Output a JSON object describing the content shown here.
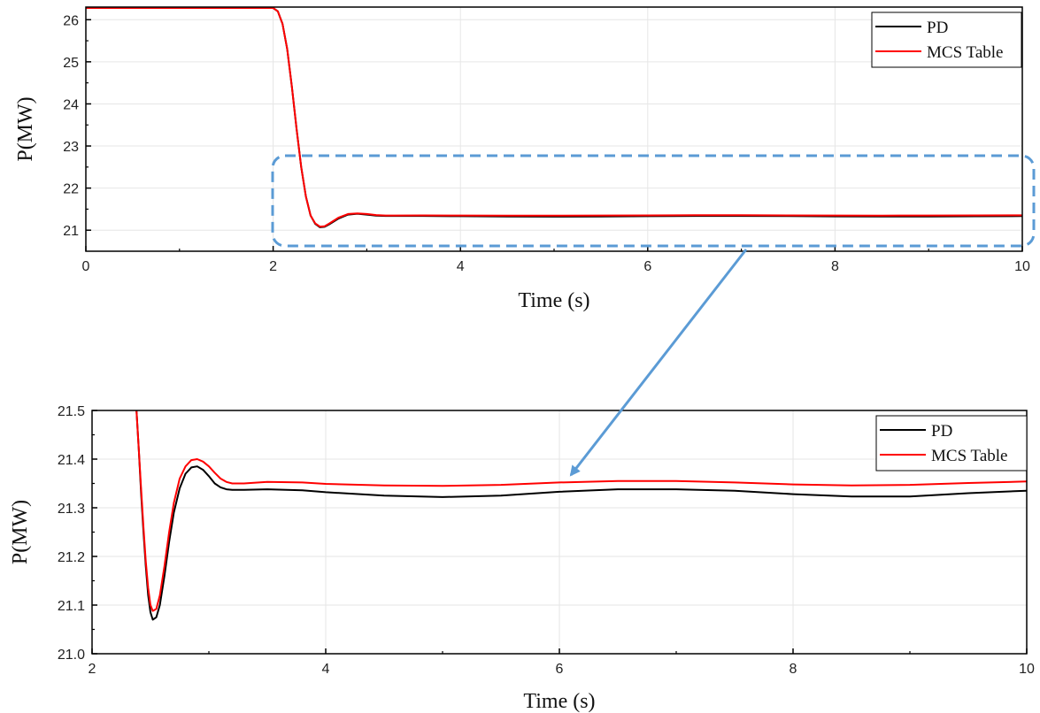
{
  "chart_data": [
    {
      "type": "line",
      "xlabel": "Time (s)",
      "ylabel": "P(MW)",
      "xlim": [
        0,
        10
      ],
      "ylim": [
        20.5,
        26.3
      ],
      "xticks": [
        0,
        2,
        4,
        6,
        8,
        10
      ],
      "yticks": [
        21,
        22,
        23,
        24,
        25,
        26
      ],
      "grid": true,
      "legend": "top-right",
      "series": [
        {
          "name": "PD",
          "color": "#000000",
          "x": [
            0,
            2.0,
            2.05,
            2.1,
            2.15,
            2.2,
            2.25,
            2.3,
            2.35,
            2.4,
            2.45,
            2.5,
            2.55,
            2.6,
            2.7,
            2.8,
            2.9,
            3.0,
            3.1,
            3.2,
            3.3,
            3.6,
            4.0,
            4.5,
            5.0,
            5.5,
            6.0,
            6.5,
            7.0,
            7.5,
            8.0,
            8.5,
            9.0,
            9.5,
            10.0
          ],
          "y": [
            26.28,
            26.28,
            26.2,
            25.9,
            25.3,
            24.4,
            23.4,
            22.5,
            21.8,
            21.35,
            21.15,
            21.07,
            21.08,
            21.14,
            21.28,
            21.37,
            21.39,
            21.37,
            21.345,
            21.338,
            21.338,
            21.338,
            21.332,
            21.325,
            21.322,
            21.325,
            21.333,
            21.338,
            21.338,
            21.335,
            21.328,
            21.323,
            21.323,
            21.33,
            21.335
          ]
        },
        {
          "name": "MCS Table",
          "color": "#ff0000",
          "x": [
            0,
            2.0,
            2.05,
            2.1,
            2.15,
            2.2,
            2.25,
            2.3,
            2.35,
            2.4,
            2.45,
            2.5,
            2.55,
            2.6,
            2.7,
            2.8,
            2.9,
            3.0,
            3.1,
            3.2,
            3.3,
            3.6,
            4.0,
            4.5,
            5.0,
            5.5,
            6.0,
            6.5,
            7.0,
            7.5,
            8.0,
            8.5,
            9.0,
            9.5,
            10.0
          ],
          "y": [
            26.28,
            26.28,
            26.2,
            25.9,
            25.3,
            24.4,
            23.4,
            22.5,
            21.8,
            21.35,
            21.16,
            21.085,
            21.095,
            21.16,
            21.3,
            21.385,
            21.4,
            21.385,
            21.36,
            21.35,
            21.35,
            21.352,
            21.348,
            21.345,
            21.345,
            21.348,
            21.352,
            21.355,
            21.355,
            21.352,
            21.348,
            21.346,
            21.348,
            21.352,
            21.354
          ]
        }
      ]
    },
    {
      "type": "line",
      "xlabel": "Time (s)",
      "ylabel": "P(MW)",
      "xlim": [
        2,
        10
      ],
      "ylim": [
        21.0,
        21.5
      ],
      "xticks": [
        2,
        4,
        6,
        8,
        10
      ],
      "yticks": [
        21.0,
        21.1,
        21.2,
        21.3,
        21.4,
        21.5
      ],
      "ytick_labels": [
        "21.0",
        "21.1",
        "21.2",
        "21.3",
        "21.4",
        "21.5"
      ],
      "grid": true,
      "legend": "top-right",
      "series": [
        {
          "name": "PD",
          "color": "#000000",
          "x": [
            2.38,
            2.4,
            2.42,
            2.44,
            2.46,
            2.48,
            2.5,
            2.52,
            2.55,
            2.58,
            2.62,
            2.66,
            2.7,
            2.75,
            2.8,
            2.85,
            2.9,
            2.95,
            3.0,
            3.05,
            3.1,
            3.15,
            3.2,
            3.3,
            3.5,
            3.8,
            4.0,
            4.5,
            5.0,
            5.5,
            6.0,
            6.5,
            7.0,
            7.5,
            8.0,
            8.5,
            9.0,
            9.5,
            10.0
          ],
          "y": [
            21.5,
            21.42,
            21.33,
            21.25,
            21.18,
            21.12,
            21.085,
            21.07,
            21.075,
            21.1,
            21.16,
            21.23,
            21.29,
            21.34,
            21.37,
            21.383,
            21.385,
            21.378,
            21.365,
            21.35,
            21.342,
            21.338,
            21.337,
            21.337,
            21.338,
            21.336,
            21.332,
            21.325,
            21.322,
            21.325,
            21.333,
            21.338,
            21.338,
            21.335,
            21.328,
            21.323,
            21.323,
            21.33,
            21.335
          ]
        },
        {
          "name": "MCS Table",
          "color": "#ff0000",
          "x": [
            2.38,
            2.4,
            2.42,
            2.44,
            2.46,
            2.48,
            2.5,
            2.52,
            2.55,
            2.58,
            2.62,
            2.66,
            2.7,
            2.75,
            2.8,
            2.85,
            2.9,
            2.95,
            3.0,
            3.05,
            3.1,
            3.15,
            3.2,
            3.3,
            3.5,
            3.8,
            4.0,
            4.5,
            5.0,
            5.5,
            6.0,
            6.5,
            7.0,
            7.5,
            8.0,
            8.5,
            9.0,
            9.5,
            10.0
          ],
          "y": [
            21.5,
            21.42,
            21.34,
            21.26,
            21.19,
            21.135,
            21.1,
            21.088,
            21.092,
            21.12,
            21.18,
            21.25,
            21.31,
            21.36,
            21.385,
            21.398,
            21.4,
            21.395,
            21.385,
            21.372,
            21.36,
            21.353,
            21.35,
            21.35,
            21.353,
            21.352,
            21.349,
            21.346,
            21.345,
            21.347,
            21.352,
            21.355,
            21.355,
            21.352,
            21.348,
            21.346,
            21.347,
            21.351,
            21.354
          ]
        }
      ]
    }
  ],
  "zoom_box_color": "#5b9bd5",
  "arrow_color": "#5b9bd5"
}
